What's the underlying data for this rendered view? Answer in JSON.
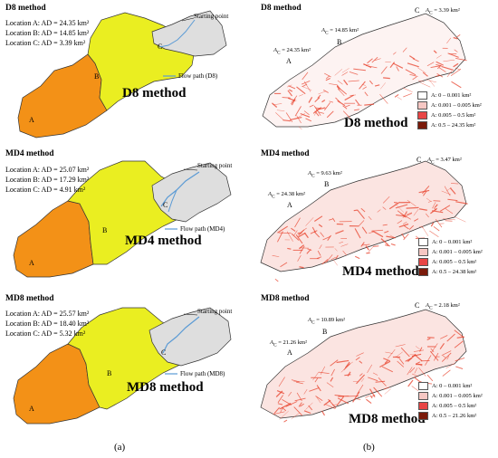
{
  "colors": {
    "A": "#f39117",
    "B": "#eaee21",
    "C": "#dedede",
    "flow": "#5b9bd5",
    "stream": "#e8402a",
    "leg1": "#ffffff",
    "leg2": "#f6c7c3",
    "leg3": "#e84545",
    "leg4": "#7a1a0a"
  },
  "panel_a": [
    {
      "title": "D8 method",
      "locA": "Location A: A",
      "locAval": "D = 24.35 km²",
      "locB": "Location B: A",
      "locBval": "D = 14.85 km²",
      "locC": "Location C: A",
      "locCval": "D =   3.39 km²",
      "start": "Starting point",
      "flow": "Flow path (D8)",
      "big": "D8 method"
    },
    {
      "title": "MD4 method",
      "locA": "Location A: A",
      "locAval": "D = 25.07 km²",
      "locB": "Location B: A",
      "locBval": "D = 17.29 km²",
      "locC": "Location C: A",
      "locCval": "D =   4.91 km²",
      "start": "Starting point",
      "flow": "Flow path (MD4)",
      "big": "MD4 method"
    },
    {
      "title": "MD8 method",
      "locA": "Location A: A",
      "locAval": "D = 25.57 km²",
      "locB": "Location B: A",
      "locBval": "D = 18.40 km²",
      "locC": "Location C: A",
      "locCval": "D =   5.32 km²",
      "start": "Starting point",
      "flow": "Flow path (MD8)",
      "big": "MD8 method"
    }
  ],
  "panel_b": [
    {
      "title": "D8 method",
      "annC": "A",
      "annCsub": "C",
      "annCval": " = 3.39 km²",
      "annB": "A",
      "annBsub": "C",
      "annBval": " = 14.85 km²",
      "annA": "A",
      "annAsub": "C",
      "annAval": " = 24.35 km²",
      "big": "D8 method",
      "leg": [
        "A: 0 – 0.001 km²",
        "A: 0.001 – 0.005 km²",
        "A: 0.005 – 0.5 km²",
        "A: 0.5 – 24.35 km²"
      ]
    },
    {
      "title": "MD4 method",
      "annC": "A",
      "annCsub": "C",
      "annCval": " = 3.47 km²",
      "annB": "A",
      "annBsub": "C",
      "annBval": " = 9.63 km²",
      "annA": "A",
      "annAsub": "C",
      "annAval": " = 24.38 km²",
      "big": "MD4 method",
      "leg": [
        "A: 0 – 0.001 km²",
        "A: 0.001 – 0.005 km²",
        "A: 0.005 – 0.5 km²",
        "A: 0.5 – 24.38 km²"
      ]
    },
    {
      "title": "MD8 method",
      "annC": "A",
      "annCsub": "C",
      "annCval": " = 2.18 km²",
      "annB": "A",
      "annBsub": "C",
      "annBval": " = 10.89 km²",
      "annA": "A",
      "annAsub": "C",
      "annAval": " = 21.26 km²",
      "big": "MD8 method",
      "leg": [
        "A: 0 – 0.001 km²",
        "A: 0.001 – 0.005 km²",
        "A: 0.005 – 0.5 km²",
        "A: 0.5 – 21.26 km²"
      ]
    }
  ],
  "labels": {
    "A": "A",
    "B": "B",
    "C": "C"
  },
  "captions": {
    "a": "(a)",
    "b": "(b)"
  }
}
